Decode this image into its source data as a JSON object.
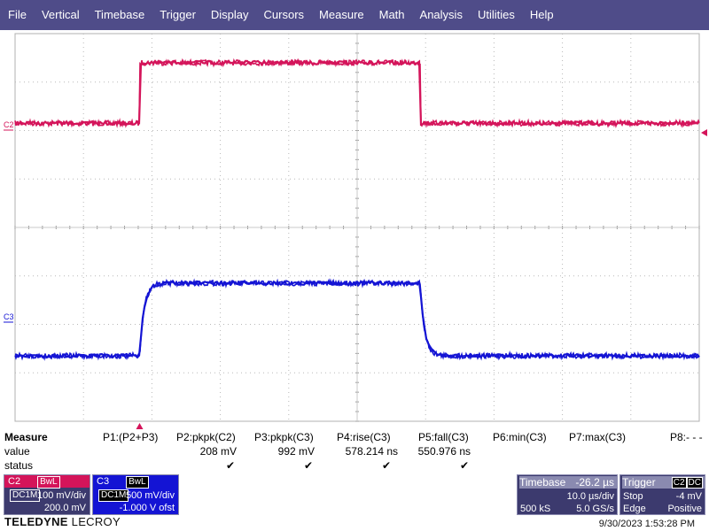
{
  "menu": [
    "File",
    "Vertical",
    "Timebase",
    "Trigger",
    "Display",
    "Cursors",
    "Measure",
    "Math",
    "Analysis",
    "Utilities",
    "Help"
  ],
  "display": {
    "grid_divisions": {
      "x": 10,
      "y": 8
    },
    "channel_labels": {
      "c2": "C2",
      "c3": "C3"
    },
    "colors": {
      "c2": "#d4145a",
      "c3": "#1414d4",
      "grid": "#999999",
      "background": "#ffffff"
    }
  },
  "measure": {
    "title": "Measure",
    "row_labels": {
      "value": "value",
      "status": "status"
    },
    "params": [
      {
        "name": "P1:(P2+P3)",
        "value": "",
        "status": false
      },
      {
        "name": "P2:pkpk(C2)",
        "value": "208 mV",
        "status": true
      },
      {
        "name": "P3:pkpk(C3)",
        "value": "992 mV",
        "status": true
      },
      {
        "name": "P4:rise(C3)",
        "value": "578.214 ns",
        "status": true
      },
      {
        "name": "P5:fall(C3)",
        "value": "550.976 ns",
        "status": true
      },
      {
        "name": "P6:min(C3)",
        "value": "",
        "status": false
      },
      {
        "name": "P7:max(C3)",
        "value": "",
        "status": false
      },
      {
        "name": "P8:- - -",
        "value": "",
        "status": false
      }
    ],
    "check_glyph": "✔"
  },
  "channels": {
    "c2": {
      "label": "C2",
      "tags": [
        "BwL",
        "DC1M"
      ],
      "vdiv": "100 mV/div",
      "offset": "200.0 mV",
      "color": "#d4145a"
    },
    "c3": {
      "label": "C3",
      "tags": [
        "BwL",
        "DC1M"
      ],
      "vdiv": "500 mV/div",
      "offset": "-1.000 V ofst",
      "color": "#1414d4"
    }
  },
  "timebase": {
    "label": "Timebase",
    "delay": "-26.2 µs",
    "tdiv": "10.0 µs/div",
    "samples": "500 kS",
    "rate": "5.0 GS/s"
  },
  "trigger": {
    "label": "Trigger",
    "source": "C2",
    "coupling": "DC",
    "mode": "Stop",
    "level": "-4 mV",
    "type": "Edge",
    "slope": "Positive"
  },
  "brand": {
    "name": "TELEDYNE",
    "sub": "LECROY"
  },
  "timestamp": "9/30/2023 1:53:28 PM",
  "waveforms": {
    "time_divisions": [
      0,
      10
    ],
    "c2": {
      "low_div": 1.85,
      "high_div": 0.6,
      "rise_at_div": 1.82,
      "fall_at_div": 5.92
    },
    "c3": {
      "low_div": 6.65,
      "high_div": 5.15,
      "rise_at_div": 1.82,
      "fall_at_div": 5.92
    }
  }
}
